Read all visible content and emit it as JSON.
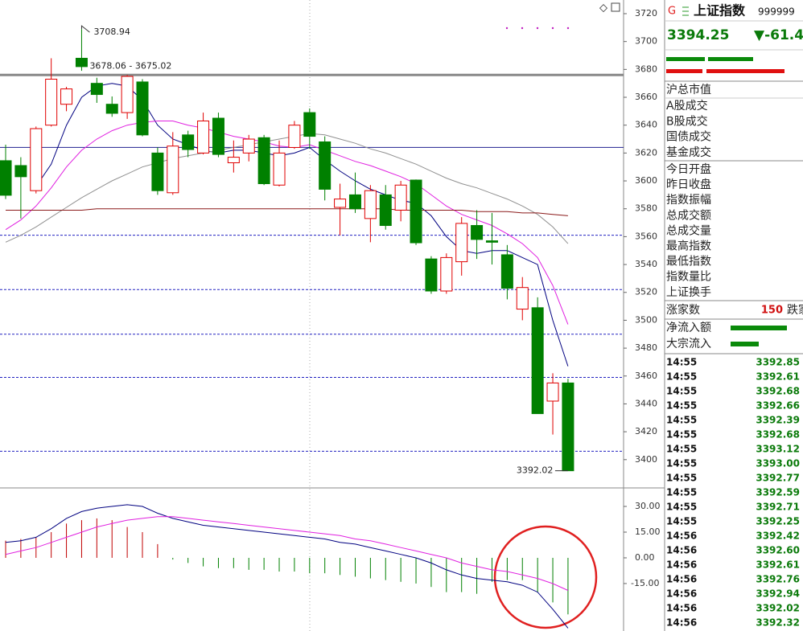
{
  "chart_data": [
    {
      "type": "candlestick",
      "open": [
        3614.5,
        3611,
        3593,
        3640,
        3655,
        3688,
        3670,
        3655,
        3649,
        3671,
        3620,
        3591.5,
        3633,
        3620,
        3645,
        3613,
        3620,
        3631,
        3597,
        3624,
        3649,
        3628,
        3581,
        3590,
        3573,
        3590,
        3579,
        3600.6,
        3544,
        3521,
        3542,
        3568,
        3557,
        3547,
        3508,
        3509,
        3442,
        3455
      ],
      "high": [
        3626,
        3617,
        3639,
        3688,
        3667.5,
        3708.94,
        3674,
        3660.6,
        3676,
        3673,
        3624,
        3635,
        3636,
        3649,
        3649,
        3629,
        3633,
        3633,
        3629,
        3643,
        3652,
        3632,
        3598,
        3606,
        3597,
        3597,
        3600,
        3601,
        3546,
        3548,
        3574,
        3579,
        3577,
        3554,
        3531,
        3516.5,
        3462,
        3458
      ],
      "low": [
        3587,
        3573,
        3591,
        3639,
        3650,
        3679,
        3656,
        3646,
        3644.5,
        3632,
        3590,
        3590,
        3617,
        3619,
        3617,
        3606,
        3614,
        3597,
        3596,
        3623,
        3623,
        3586,
        3561,
        3577,
        3556,
        3565,
        3571,
        3554,
        3519,
        3519,
        3532,
        3544,
        3540,
        3515,
        3500,
        3433,
        3418,
        3392.02
      ],
      "close": [
        3589.7,
        3603,
        3637.5,
        3673,
        3666,
        3682,
        3662,
        3648.5,
        3675,
        3633,
        3593,
        3625,
        3622.5,
        3643,
        3619,
        3617,
        3630,
        3598,
        3620,
        3640,
        3632,
        3594,
        3587,
        3580,
        3593,
        3568,
        3597,
        3555.6,
        3521,
        3545,
        3569.5,
        3558,
        3556,
        3523,
        3523.5,
        3433,
        3455,
        3392.02
      ],
      "up_color": "#e00000",
      "down_color": "#008000",
      "lines": [
        {
          "color": "#000080",
          "values": [
            null,
            null,
            3596,
            3612,
            3640,
            3660,
            3668,
            3670,
            3668,
            3658,
            3640,
            3630,
            3626,
            3622,
            3620,
            3622,
            3622,
            3620,
            3618,
            3620,
            3624,
            3615,
            3607,
            3600,
            3594,
            3590,
            3586,
            3584,
            3575,
            3560,
            3550,
            3548,
            3550,
            3550,
            3545,
            3540,
            3500,
            3467
          ]
        },
        {
          "color": "#e020e0",
          "values": [
            3565,
            3572,
            3582,
            3595,
            3610,
            3622,
            3630,
            3636,
            3640,
            3642,
            3643,
            3643,
            3640,
            3638,
            3635,
            3632,
            3630,
            3628,
            3625,
            3624,
            3626,
            3622,
            3618,
            3614,
            3611,
            3607,
            3603,
            3598,
            3590,
            3582,
            3576,
            3572,
            3568,
            3562,
            3555,
            3545,
            3525,
            3497
          ]
        },
        {
          "color": "#909090",
          "values": [
            3556,
            3561,
            3567,
            3574,
            3581,
            3588,
            3594,
            3600,
            3605,
            3610,
            3613,
            3616,
            3618,
            3620,
            3622,
            3624,
            3626,
            3628,
            3630,
            3632,
            3634,
            3633,
            3630,
            3627,
            3623,
            3620,
            3616,
            3612,
            3607,
            3602,
            3598,
            3595,
            3591,
            3587,
            3582,
            3576,
            3567,
            3555
          ]
        },
        {
          "color": "#8b1a1a",
          "values": [
            3579,
            3579,
            3579,
            3579,
            3579,
            3579,
            3580,
            3580,
            3580,
            3580,
            3580,
            3580,
            3580,
            3580,
            3580,
            3580,
            3580,
            3580,
            3580,
            3580,
            3580,
            3580,
            3580,
            3580,
            3580,
            3580,
            3579,
            3579,
            3579,
            3579,
            3579,
            3578,
            3578,
            3578,
            3577,
            3577,
            3576,
            3575
          ]
        }
      ],
      "levels": [
        {
          "value": 3676,
          "color": "#888888",
          "style": "thick"
        },
        {
          "value": 3624,
          "color": "#202090",
          "style": "solid"
        },
        {
          "value": 3561,
          "color": "#2020c0",
          "style": "dashed"
        },
        {
          "value": 3522,
          "color": "#2020c0",
          "style": "dashed"
        },
        {
          "value": 3490,
          "color": "#2020c0",
          "style": "dashed"
        },
        {
          "value": 3459,
          "color": "#2020c0",
          "style": "dashed"
        },
        {
          "value": 3406,
          "color": "#2020c0",
          "style": "dashed"
        }
      ],
      "annotations": [
        {
          "text": "3708.94",
          "index": 5,
          "price": 3708.94
        },
        {
          "text": "3678.06 - 3675.02",
          "index": 5,
          "price": 3676
        },
        {
          "text": "3392.02",
          "index": 37,
          "price": 3392.02
        }
      ],
      "ylim": [
        3379.7,
        3729.8
      ],
      "yticks": [
        3400,
        3420,
        3440,
        3460,
        3480,
        3500,
        3520,
        3540,
        3560,
        3580,
        3600,
        3620,
        3640,
        3660,
        3680,
        3700,
        3720
      ]
    },
    {
      "type": "macd",
      "values": [
        10,
        11,
        12,
        15,
        20,
        22,
        23,
        22,
        18,
        15,
        8,
        -1,
        -3,
        -5,
        -6,
        -6,
        -7,
        -7,
        -8,
        -8,
        -9,
        -9,
        -10,
        -11,
        -12,
        -13,
        -14,
        -15,
        -17,
        -20,
        -20,
        -21,
        -14,
        -13,
        -13,
        -20,
        -26,
        -33
      ],
      "up_color": "#c00000",
      "down_color": "#008000",
      "lines": [
        {
          "color": "#000080",
          "values": [
            9,
            10,
            12,
            17,
            23,
            27,
            29,
            30,
            31,
            30,
            26,
            23,
            21,
            19,
            18,
            17,
            16,
            15,
            14,
            13,
            12,
            11,
            9,
            8,
            6,
            4,
            2,
            0,
            -3,
            -7,
            -10,
            -12,
            -13,
            -14,
            -16,
            -20,
            -30,
            -41
          ]
        },
        {
          "color": "#e020e0",
          "values": [
            2,
            4,
            6,
            9,
            12,
            15,
            18,
            20,
            22,
            23,
            24,
            24,
            23,
            22,
            21,
            20,
            19,
            18,
            17,
            16,
            15,
            14,
            13,
            11,
            10,
            8,
            6,
            4,
            2,
            0,
            -3,
            -5,
            -7,
            -8,
            -10,
            -12,
            -15,
            -19
          ]
        }
      ],
      "ylim": [
        -42.7,
        40.8
      ],
      "yticks": [
        {
          "value": 30,
          "label": "30.00"
        },
        {
          "value": 15,
          "label": "15.00"
        },
        {
          "value": 0,
          "label": "0.00"
        },
        {
          "value": -15,
          "label": "-15.00"
        }
      ]
    }
  ],
  "quote": {
    "badge": "G",
    "name": "上证指数",
    "code": "999999",
    "price": "3394.25",
    "change": "▼-61.4",
    "fields": [
      "沪总市值",
      "A股成交",
      "B股成交",
      "国债成交",
      "基金成交",
      "今日开盘",
      "昨日收盘",
      "指数振幅",
      "总成交额",
      "总成交量",
      "最高指数",
      "最低指数",
      "指数量比",
      "上证换手"
    ],
    "up_count_label": "涨家数",
    "up_count": 150,
    "down_count_label": "跌家数",
    "flows": [
      "净流入额",
      "大宗流入"
    ],
    "ticks": [
      {
        "time": "14:55",
        "price": "3392.85"
      },
      {
        "time": "14:55",
        "price": "3392.61"
      },
      {
        "time": "14:55",
        "price": "3392.68"
      },
      {
        "time": "14:55",
        "price": "3392.66"
      },
      {
        "time": "14:55",
        "price": "3392.39"
      },
      {
        "time": "14:55",
        "price": "3392.68"
      },
      {
        "time": "14:55",
        "price": "3393.12"
      },
      {
        "time": "14:55",
        "price": "3393.00"
      },
      {
        "time": "14:55",
        "price": "3392.77"
      },
      {
        "time": "14:55",
        "price": "3392.59"
      },
      {
        "time": "14:55",
        "price": "3392.71"
      },
      {
        "time": "14:55",
        "price": "3392.25"
      },
      {
        "time": "14:56",
        "price": "3392.42"
      },
      {
        "time": "14:56",
        "price": "3392.60"
      },
      {
        "time": "14:56",
        "price": "3392.61"
      },
      {
        "time": "14:56",
        "price": "3392.76"
      },
      {
        "time": "14:56",
        "price": "3392.94"
      },
      {
        "time": "14:56",
        "price": "3392.02"
      },
      {
        "time": "14:56",
        "price": "3392.32"
      }
    ]
  }
}
